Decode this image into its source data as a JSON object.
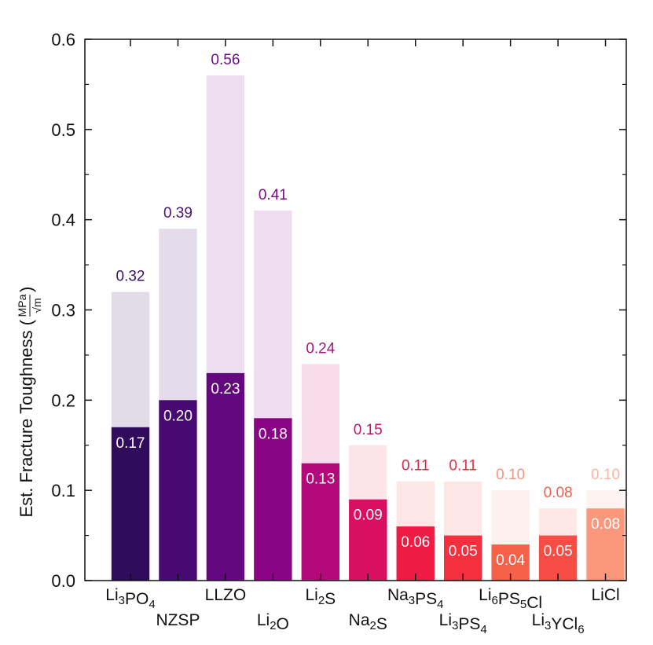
{
  "chart_data": {
    "type": "bar",
    "ylabel": "Est. Fracture Toughness (MPa/√m)",
    "ylabel_parts": {
      "text": "Est. Fracture Toughness (",
      "num": "MPa",
      "den": "√m",
      "close": ")"
    },
    "ylim": [
      0.0,
      0.6
    ],
    "yticks": [
      "0.0",
      "0.1",
      "0.2",
      "0.3",
      "0.4",
      "0.5",
      "0.6"
    ],
    "grid": false,
    "series": [
      {
        "name": "",
        "values": [
          0.32,
          0.39,
          0.56,
          0.41,
          0.24,
          0.15,
          0.11,
          0.11,
          0.1,
          0.08,
          0.1
        ]
      },
      {
        "name": "",
        "values": [
          0.17,
          0.2,
          0.23,
          0.18,
          0.13,
          0.09,
          0.06,
          0.05,
          0.04,
          0.05,
          0.08
        ]
      }
    ],
    "categories": [
      {
        "base": "Li",
        "parts": [
          [
            "Li",
            ""
          ],
          [
            "3",
            "sub"
          ],
          [
            "PO",
            ""
          ],
          [
            "4",
            "sub"
          ]
        ],
        "row": 0
      },
      {
        "base": "NZSP",
        "parts": [
          [
            "NZSP",
            ""
          ]
        ],
        "row": 1
      },
      {
        "base": "LLZO",
        "parts": [
          [
            "LLZO",
            ""
          ]
        ],
        "row": 0
      },
      {
        "base": "Li2O",
        "parts": [
          [
            "Li",
            ""
          ],
          [
            "2",
            "sub"
          ],
          [
            "O",
            ""
          ]
        ],
        "row": 1
      },
      {
        "base": "Li2S",
        "parts": [
          [
            "Li",
            ""
          ],
          [
            "2",
            "sub"
          ],
          [
            "S",
            ""
          ]
        ],
        "row": 0
      },
      {
        "base": "Na2S",
        "parts": [
          [
            "Na",
            ""
          ],
          [
            "2",
            "sub"
          ],
          [
            "S",
            ""
          ]
        ],
        "row": 1
      },
      {
        "base": "Na3PS4",
        "parts": [
          [
            "Na",
            ""
          ],
          [
            "3",
            "sub"
          ],
          [
            "PS",
            ""
          ],
          [
            "4",
            "sub"
          ]
        ],
        "row": 0
      },
      {
        "base": "Li3PS4",
        "parts": [
          [
            "Li",
            ""
          ],
          [
            "3",
            "sub"
          ],
          [
            "PS",
            ""
          ],
          [
            "4",
            "sub"
          ]
        ],
        "row": 1
      },
      {
        "base": "Li6PS5Cl",
        "parts": [
          [
            "Li",
            ""
          ],
          [
            "6",
            "sub"
          ],
          [
            "PS",
            ""
          ],
          [
            "5",
            "sub"
          ],
          [
            "Cl",
            ""
          ]
        ],
        "row": 0
      },
      {
        "base": "Li3YCl6",
        "parts": [
          [
            "Li",
            ""
          ],
          [
            "3",
            "sub"
          ],
          [
            "YCl",
            ""
          ],
          [
            "6",
            "sub"
          ]
        ],
        "row": 1
      },
      {
        "base": "LiCl",
        "parts": [
          [
            "LiCl",
            ""
          ]
        ],
        "row": 0
      }
    ],
    "value_labels_upper": [
      "0.32",
      "0.39",
      "0.56",
      "0.41",
      "0.24",
      "0.15",
      "0.11",
      "0.11",
      "0.10",
      "0.08",
      "0.10"
    ],
    "value_labels_lower": [
      "0.17",
      "0.20",
      "0.23",
      "0.18",
      "0.13",
      "0.09",
      "0.06",
      "0.05",
      "0.04",
      "0.05",
      "0.08"
    ],
    "colors": {
      "dark": [
        "#310b5c",
        "#460a72",
        "#63087f",
        "#8a0486",
        "#b4097a",
        "#da0f62",
        "#ee1c44",
        "#f4303e",
        "#f7614a",
        "#f74d44",
        "#fb977a"
      ],
      "light": [
        "#e2dce8",
        "#e4dbeb",
        "#eddff1",
        "#f0dcf0",
        "#f8dce9",
        "#fce4ea",
        "#fde6e6",
        "#fde7e6",
        "#fef0ed",
        "#fde8e6",
        "#fef3f0"
      ],
      "upper_text": [
        "#3b1165",
        "#4a1376",
        "#6a1082",
        "#7f0a86",
        "#a31479",
        "#c41467",
        "#e0254a",
        "#e62e43",
        "#f59481",
        "#f06250",
        "#fbb49e"
      ],
      "lower_text": "#ffffff"
    }
  }
}
